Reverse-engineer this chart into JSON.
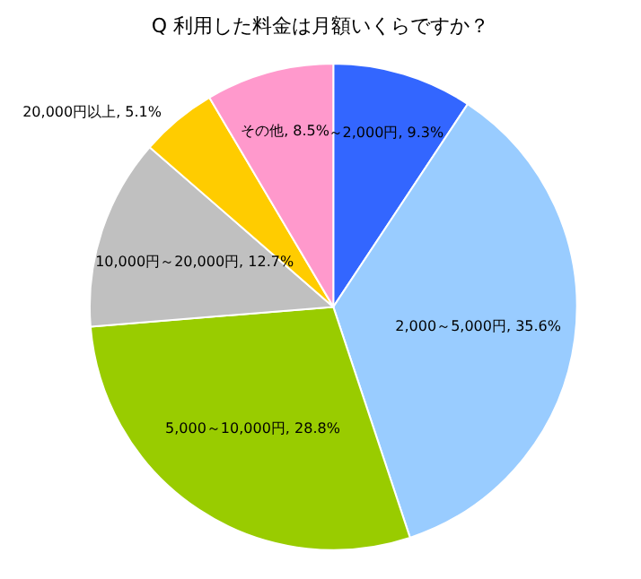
{
  "chart_data": {
    "type": "pie",
    "title": "Q 利用した料金は月額いくらですか？",
    "categories": [
      "～2,000円",
      "2,000～5,000円",
      "5,000～10,000円",
      "10,000円～20,000円",
      "20,000円以上",
      "その他"
    ],
    "values": [
      9.3,
      35.6,
      28.8,
      12.7,
      5.1,
      8.5
    ],
    "value_labels": [
      "9.3%",
      "35.6%",
      "28.8%",
      "12.7%",
      "5.1%",
      "8.5%"
    ],
    "colors": [
      "#3366ff",
      "#99ccff",
      "#99cc00",
      "#c0c0c0",
      "#ffcc00",
      "#ff99cc"
    ],
    "legend": false
  }
}
